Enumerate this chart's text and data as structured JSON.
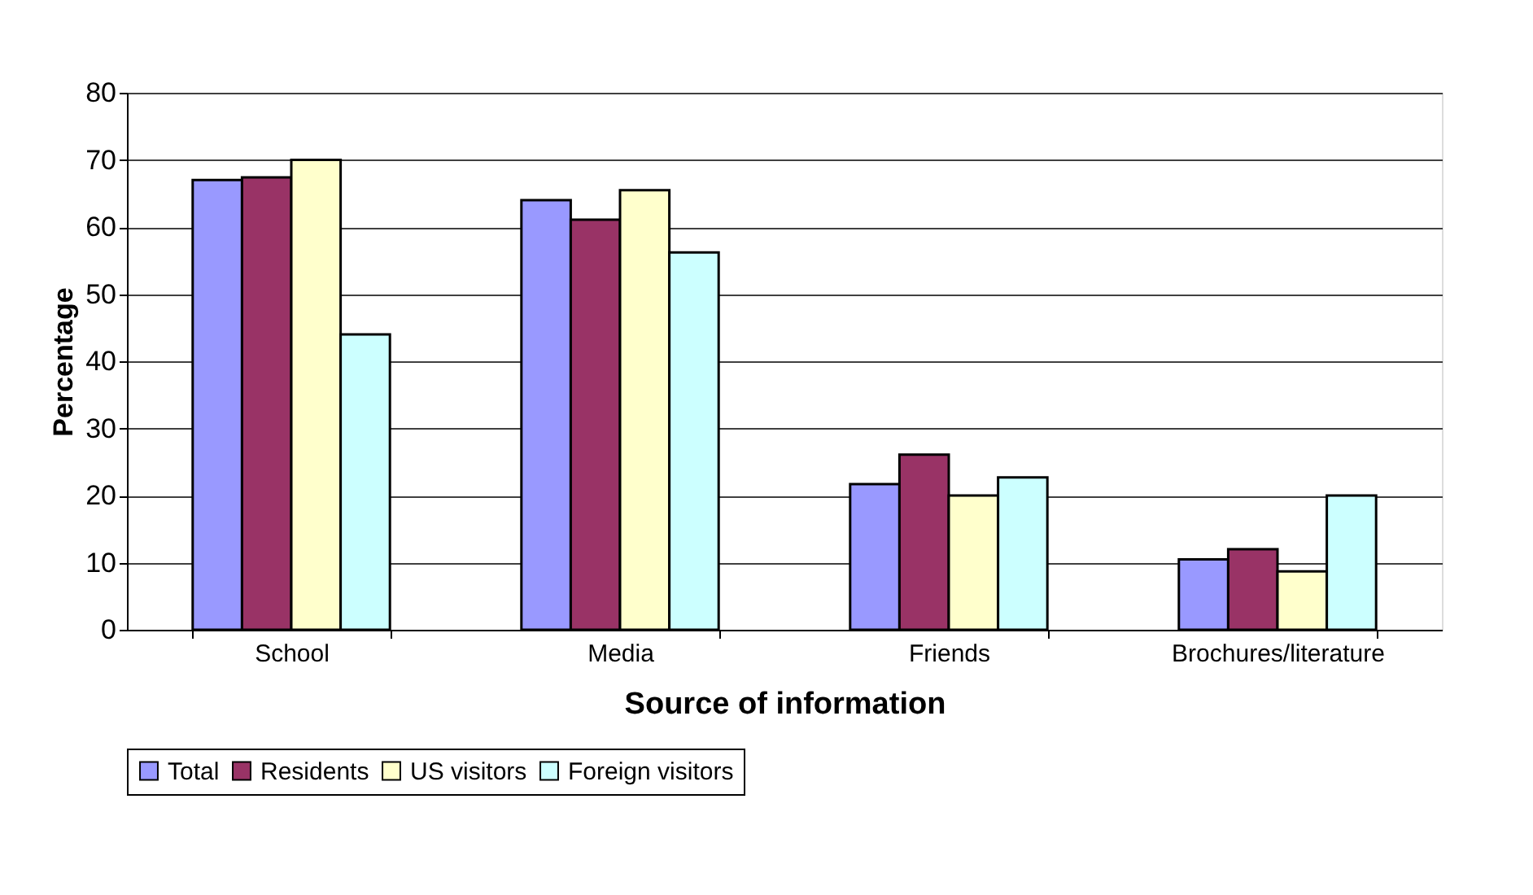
{
  "chart_data": {
    "type": "bar",
    "xlabel": "Source of information",
    "ylabel": "Percentage",
    "categories": [
      "School",
      "Media",
      "Friends",
      "Brochures/literature"
    ],
    "series": [
      {
        "name": "Total",
        "color": "#9999ff",
        "values": [
          67,
          64,
          21.7,
          10.5
        ]
      },
      {
        "name": "Residents",
        "color": "#993366",
        "values": [
          67.4,
          61.1,
          26.1,
          12
        ]
      },
      {
        "name": "US visitors",
        "color": "#ffffcc",
        "values": [
          70,
          65.5,
          20,
          8.7
        ]
      },
      {
        "name": "Foreign visitors",
        "color": "#ccffff",
        "values": [
          44,
          56.2,
          22.7,
          20
        ]
      }
    ],
    "ylim": [
      0,
      80
    ],
    "yticks": [
      0,
      10,
      20,
      30,
      40,
      50,
      60,
      70,
      80
    ],
    "grid": "y",
    "legend": "bottom"
  }
}
